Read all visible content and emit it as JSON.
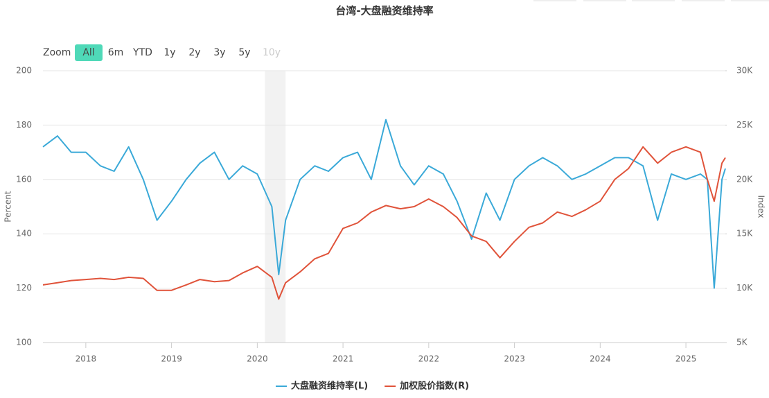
{
  "chart_data": {
    "type": "line",
    "title": "台湾-大盘融资维持率",
    "range_selector": {
      "label": "Zoom",
      "buttons": [
        "All",
        "6m",
        "YTD",
        "1y",
        "2y",
        "3y",
        "5y",
        "10y"
      ],
      "selected": "All"
    },
    "y_label": "Percent",
    "y2_label": "Index",
    "x": [
      2017.5,
      2017.67,
      2017.83,
      2018,
      2018.17,
      2018.33,
      2018.5,
      2018.67,
      2018.83,
      2019,
      2019.17,
      2019.33,
      2019.5,
      2019.67,
      2019.83,
      2020,
      2020.17,
      2020.25,
      2020.33,
      2020.5,
      2020.67,
      2020.83,
      2021,
      2021.17,
      2021.33,
      2021.5,
      2021.67,
      2021.83,
      2022,
      2022.17,
      2022.33,
      2022.5,
      2022.67,
      2022.83,
      2023,
      2023.17,
      2023.33,
      2023.5,
      2023.67,
      2023.83,
      2024,
      2024.17,
      2024.33,
      2024.5,
      2024.67,
      2024.83,
      2025,
      2025.17,
      2025.25,
      2025.33,
      2025.42,
      2025.46
    ],
    "xlim": [
      2017.5,
      2025.46
    ],
    "xticks": [
      2018,
      2019,
      2020,
      2021,
      2022,
      2023,
      2024,
      2025
    ],
    "ylim": [
      100,
      200
    ],
    "yticks": [
      100,
      120,
      140,
      160,
      180,
      200
    ],
    "y2lim": [
      5000,
      30000
    ],
    "y2ticks": [
      {
        "value": 5000,
        "label": "5K"
      },
      {
        "value": 10000,
        "label": "10K"
      },
      {
        "value": 15000,
        "label": "15K"
      },
      {
        "value": 20000,
        "label": "20K"
      },
      {
        "value": 25000,
        "label": "25K"
      },
      {
        "value": 30000,
        "label": "30K"
      }
    ],
    "plot_band": [
      2020.09,
      2020.33
    ],
    "grid": true,
    "series": [
      {
        "name": "大盘融资维持率(L)",
        "color": "#3aa9d8",
        "values": [
          172,
          176,
          170,
          170,
          165,
          163,
          172,
          160,
          145,
          152,
          160,
          166,
          170,
          160,
          165,
          162,
          150,
          125,
          145,
          160,
          165,
          163,
          168,
          170,
          160,
          182,
          165,
          158,
          165,
          162,
          152,
          138,
          155,
          145,
          160,
          165,
          168,
          165,
          160,
          162,
          165,
          168,
          168,
          165,
          145,
          162,
          160,
          162,
          160,
          120,
          160,
          164
        ]
      },
      {
        "name": "加权股价指数(R)",
        "color": "#e0533a",
        "axis": "y2",
        "values": [
          10300,
          10500,
          10700,
          10800,
          10900,
          10800,
          11000,
          10900,
          9800,
          9800,
          10300,
          10800,
          10600,
          10700,
          11400,
          12000,
          11000,
          9000,
          10500,
          11500,
          12700,
          13200,
          15500,
          16000,
          17000,
          17600,
          17300,
          17500,
          18200,
          17500,
          16500,
          14800,
          14300,
          12800,
          14300,
          15600,
          16000,
          17000,
          16600,
          17200,
          18000,
          20000,
          21000,
          23000,
          21500,
          22500,
          23000,
          22500,
          20000,
          18000,
          21500,
          22000
        ]
      }
    ]
  }
}
